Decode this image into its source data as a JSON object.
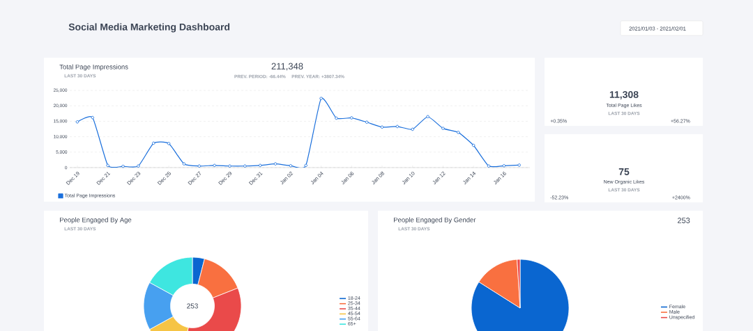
{
  "chart_data": [
    {
      "type": "other",
      "title": "Social Media Marketing Dashboard",
      "annotations": [
        "2021/01/03 - 2021/02/01"
      ]
    },
    {
      "type": "line",
      "title": "Total Page Impressions",
      "subtitle": "LAST 30 DAYS",
      "annotations": [
        "211,348",
        "PREV. PERIOD: -66.44%",
        "PREV. YEAR: +3807.34%"
      ],
      "categories": [
        "Dec 19",
        null,
        "Dec 21",
        null,
        "Dec 23",
        null,
        "Dec 25",
        null,
        "Dec 27",
        null,
        "Dec 29",
        null,
        "Dec 31",
        null,
        "Jan 02",
        null,
        "Jan 04",
        null,
        "Jan 06",
        null,
        "Jan 08",
        null,
        "Jan 10",
        null,
        "Jan 12",
        null,
        "Jan 14",
        null,
        "Jan 16",
        null
      ],
      "series": [
        {
          "name": "Total Page Impressions",
          "color": "#1a6fdc",
          "values": [
            14800,
            16200,
            700,
            400,
            500,
            7900,
            7800,
            1200,
            500,
            700,
            500,
            500,
            700,
            1200,
            600,
            700,
            22400,
            16000,
            16100,
            14700,
            13100,
            13300,
            12400,
            16500,
            12700,
            11400,
            7200,
            500,
            600,
            800
          ]
        }
      ],
      "ylim": [
        0,
        25000
      ],
      "yticks": [
        0,
        {
          "value": 5000,
          "label": "5,000"
        },
        {
          "value": 10000,
          "label": "10,000"
        },
        {
          "value": 15000,
          "label": "15,000"
        },
        {
          "value": 20000,
          "label": "20,000"
        },
        {
          "value": 25000,
          "label": "25,000"
        }
      ],
      "grid": "y",
      "legend": "bottom",
      "marker": "circle"
    },
    {
      "type": "other",
      "title": "Total Page Likes",
      "annotations": [
        "11,308",
        "LAST 30 DAYS",
        "+0.35%",
        "+56.27%"
      ]
    },
    {
      "type": "other",
      "title": "New Organic Likes",
      "annotations": [
        "75",
        "LAST 30 DAYS",
        "-52.23%",
        "+2400%"
      ]
    },
    {
      "type": "donut",
      "title": "People Engaged By Age",
      "subtitle": "LAST 30 DAYS",
      "annotations": [
        "253"
      ],
      "categories": [
        "18-24",
        "25-34",
        "35-44",
        "45-54",
        "55-64",
        "65+"
      ],
      "values": [
        4,
        15,
        34,
        14,
        16,
        17
      ],
      "colors": [
        "#0a66d0",
        "#f97040",
        "#ea4a4a",
        "#f6c445",
        "#47a0f0",
        "#3ee6e0"
      ],
      "legend": "right"
    },
    {
      "type": "pie",
      "title": "People Engaged By Gender",
      "subtitle": "LAST 30 DAYS",
      "annotations": [
        "253"
      ],
      "categories": [
        "Female",
        "Male",
        "Unspecified"
      ],
      "values": [
        84,
        15,
        1
      ],
      "colors": [
        "#0a66d0",
        "#f97040",
        "#ea4a4a"
      ],
      "legend": "right"
    }
  ]
}
